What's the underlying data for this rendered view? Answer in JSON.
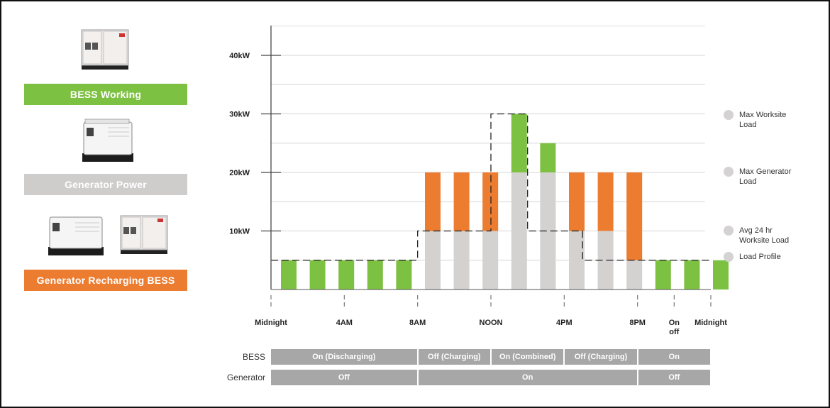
{
  "modes": [
    {
      "label": "BESS Working",
      "color": "#7dc142"
    },
    {
      "label": "Generator Power",
      "color": "#cfcccc"
    },
    {
      "label": "Generator Recharging BESS",
      "color": "#ec7c30"
    }
  ],
  "machine_icons": [
    "battery-unit-icon",
    "generator-unit-icon",
    "generator-and-battery-icon"
  ],
  "chart_data": {
    "type": "bar",
    "y_unit": "kW",
    "ylim": [
      0,
      40
    ],
    "yticks": [
      {
        "value": 10,
        "label": "10kW"
      },
      {
        "value": 20,
        "label": "20kW"
      },
      {
        "value": 30,
        "label": "30kW"
      },
      {
        "value": 40,
        "label": "40kW"
      }
    ],
    "x_ticks": [
      {
        "label": "Midnight",
        "hour": 0
      },
      {
        "label": "4AM",
        "hour": 4
      },
      {
        "label": "8AM",
        "hour": 8
      },
      {
        "label": "NOON",
        "hour": 12
      },
      {
        "label": "4PM",
        "hour": 16
      },
      {
        "label": "8PM",
        "hour": 20
      },
      {
        "label": "On\noff",
        "hour": 22
      },
      {
        "label": "Midnight",
        "hour": 24
      }
    ],
    "stacks_by_hour": [
      {
        "hour": 0,
        "generator": 0,
        "bess": 5,
        "recharge": 0
      },
      {
        "hour": 1,
        "generator": 0,
        "bess": 5,
        "recharge": 0
      },
      {
        "hour": 2,
        "generator": 0,
        "bess": 5,
        "recharge": 0
      },
      {
        "hour": 3,
        "generator": 0,
        "bess": 5,
        "recharge": 0
      },
      {
        "hour": 4,
        "generator": 0,
        "bess": 5,
        "recharge": 0
      },
      {
        "hour": 5,
        "generator": 10,
        "bess": 0,
        "recharge": 10
      },
      {
        "hour": 6,
        "generator": 10,
        "bess": 0,
        "recharge": 10
      },
      {
        "hour": 7,
        "generator": 10,
        "bess": 0,
        "recharge": 10
      },
      {
        "hour": 8,
        "generator": 20,
        "bess": 10,
        "recharge": 0
      },
      {
        "hour": 9,
        "generator": 20,
        "bess": 5,
        "recharge": 0
      },
      {
        "hour": 10,
        "generator": 10,
        "bess": 0,
        "recharge": 10
      },
      {
        "hour": 11,
        "generator": 10,
        "bess": 0,
        "recharge": 10
      },
      {
        "hour": 12,
        "generator": 5,
        "bess": 0,
        "recharge": 15
      },
      {
        "hour": 13,
        "generator": 0,
        "bess": 5,
        "recharge": 0
      },
      {
        "hour": 14,
        "generator": 0,
        "bess": 5,
        "recharge": 0
      },
      {
        "hour": 15,
        "generator": 0,
        "bess": 5,
        "recharge": 0
      }
    ],
    "series_colors": {
      "generator": "#d4d1d1",
      "bess": "#7dc142",
      "recharge": "#ec7c30"
    },
    "load_profile": [
      [
        0,
        5
      ],
      [
        8,
        5
      ],
      [
        8,
        10
      ],
      [
        12,
        10
      ],
      [
        12,
        30
      ],
      [
        14,
        30
      ],
      [
        14,
        10
      ],
      [
        17,
        10
      ],
      [
        17,
        5
      ],
      [
        24,
        5
      ]
    ],
    "legend": [
      {
        "label": "Max Worksite\nLoad"
      },
      {
        "label": "Max Generator\nLoad"
      },
      {
        "label": "Avg 24 hr\nWorksite Load"
      },
      {
        "label": "Load Profile"
      }
    ]
  },
  "status": {
    "rows": [
      {
        "label": "BESS",
        "cells": [
          {
            "text": "On (Discharging)",
            "span": [
              0,
              8
            ]
          },
          {
            "text": "Off (Charging)",
            "span": [
              8,
              12
            ]
          },
          {
            "text": "On (Combined)",
            "span": [
              12,
              16
            ]
          },
          {
            "text": "Off (Charging)",
            "span": [
              16,
              20
            ]
          },
          {
            "text": "On",
            "span": [
              20,
              24
            ]
          }
        ]
      },
      {
        "label": "Generator",
        "cells": [
          {
            "text": "Off",
            "span": [
              0,
              8
            ]
          },
          {
            "text": "On",
            "span": [
              8,
              20
            ]
          },
          {
            "text": "Off",
            "span": [
              20,
              24
            ]
          }
        ]
      }
    ]
  }
}
